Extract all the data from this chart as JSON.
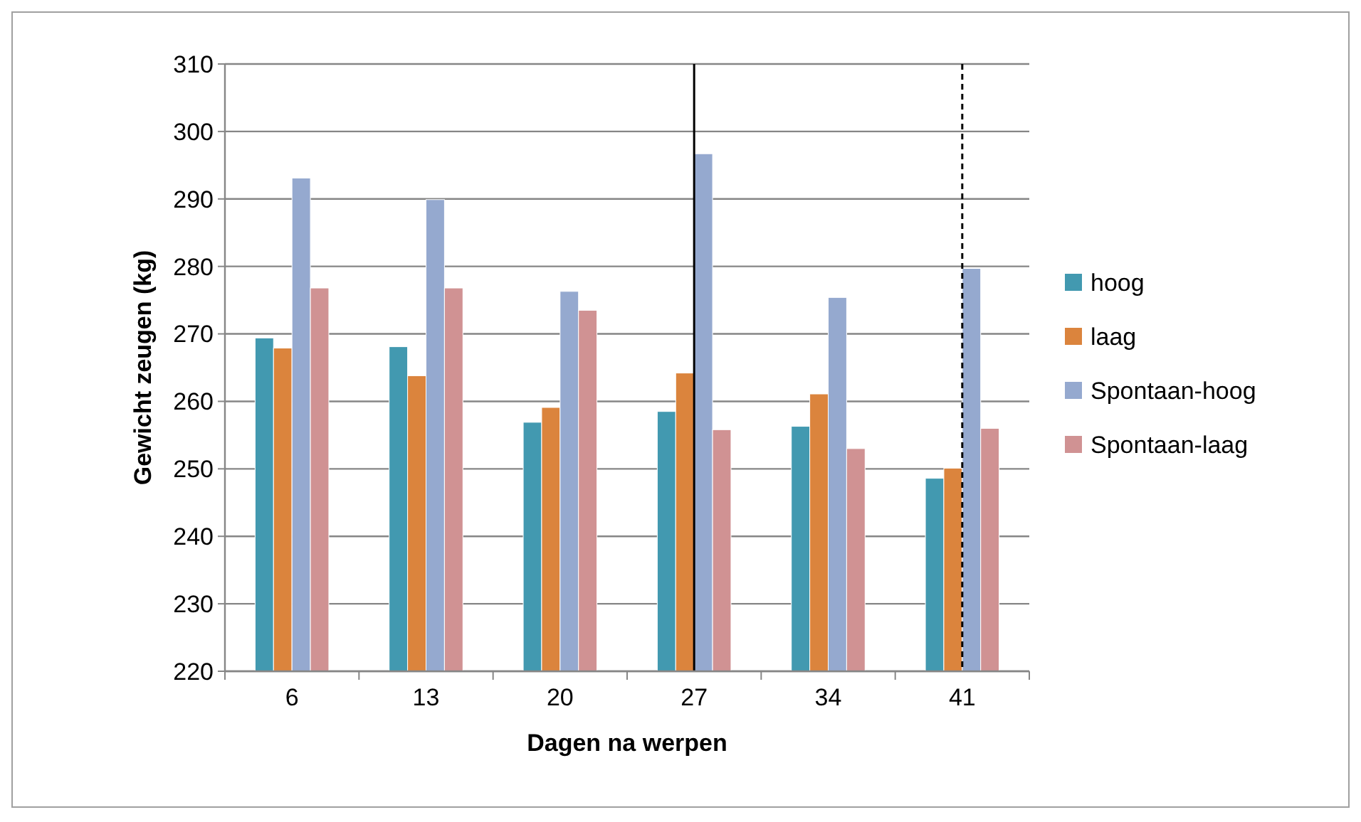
{
  "chart_data": {
    "type": "bar",
    "xlabel": "Dagen na werpen",
    "ylabel": "Gewicht zeugen (kg)",
    "categories": [
      "6",
      "13",
      "20",
      "27",
      "34",
      "41"
    ],
    "series": [
      {
        "name": "hoog",
        "color": "#4299b0",
        "values": [
          269.4,
          268.1,
          256.9,
          258.5,
          256.3,
          248.6
        ]
      },
      {
        "name": "laag",
        "color": "#db843d",
        "values": [
          267.9,
          263.8,
          259.1,
          264.2,
          261.1,
          250.1
        ]
      },
      {
        "name": "Spontaan-hoog",
        "color": "#95a9cf",
        "values": [
          293.1,
          289.9,
          276.3,
          296.7,
          275.4,
          279.7
        ]
      },
      {
        "name": "Spontaan-laag",
        "color": "#d09293",
        "values": [
          276.8,
          276.8,
          273.5,
          255.8,
          253.0,
          256.0
        ]
      }
    ],
    "ylim": [
      220,
      310
    ],
    "yticks": [
      220,
      230,
      240,
      250,
      260,
      270,
      280,
      290,
      300,
      310
    ],
    "grid": "y",
    "legend": "right",
    "ref_lines": [
      {
        "axis": "x",
        "value": "27",
        "color": "#000000",
        "line_style": "solid"
      },
      {
        "axis": "x",
        "value": "41",
        "color": "#000000",
        "line_style": "dashed"
      }
    ]
  }
}
